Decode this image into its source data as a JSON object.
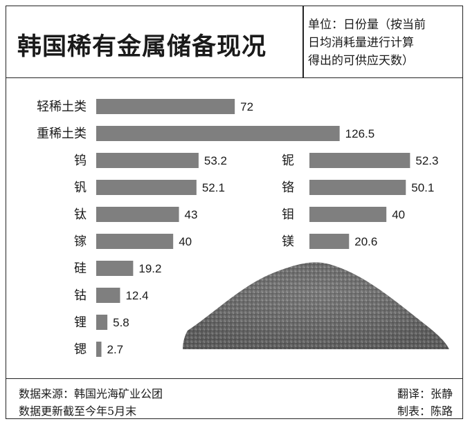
{
  "header": {
    "title": "韩国稀有金属储备现况",
    "unit_lines": [
      "单位：日份量（按当前",
      "日均消耗量进行计算",
      "得出的可供应天数）"
    ]
  },
  "footer": {
    "source": "数据来源：韩国光海矿业公团",
    "update": "数据更新截至今年5月末",
    "translator": "翻译：张静",
    "maker": "制表：陈路"
  },
  "colors": {
    "bar": "#7f7f7f",
    "border": "#222222"
  },
  "chart_data": {
    "type": "bar",
    "orientation": "horizontal",
    "bars": [
      {
        "label": "轻稀土类",
        "value": 72,
        "value_label": "72"
      },
      {
        "label": "重稀土类",
        "value": 126.5,
        "value_label": "126.5"
      },
      {
        "label": "钨",
        "value": 53.2,
        "value_label": "53.2"
      },
      {
        "label": "铌",
        "value": 52.3,
        "value_label": "52.3"
      },
      {
        "label": "钒",
        "value": 52.1,
        "value_label": "52.1"
      },
      {
        "label": "铬",
        "value": 50.1,
        "value_label": "50.1"
      },
      {
        "label": "钛",
        "value": 43,
        "value_label": "43"
      },
      {
        "label": "钼",
        "value": 40,
        "value_label": "40"
      },
      {
        "label": "镓",
        "value": 40,
        "value_label": "40"
      },
      {
        "label": "镁",
        "value": 20.6,
        "value_label": "20.6"
      },
      {
        "label": "硅",
        "value": 19.2,
        "value_label": "19.2"
      },
      {
        "label": "钴",
        "value": 12.4,
        "value_label": "12.4"
      },
      {
        "label": "锂",
        "value": 5.8,
        "value_label": "5.8"
      },
      {
        "label": "锶",
        "value": 2.7,
        "value_label": "2.7"
      }
    ],
    "title": "韩国稀有金属储备现况",
    "unit": "单位：日份量（按当前日均消耗量进行计算得出的可供应天数）",
    "grid": false,
    "legend": "none"
  }
}
